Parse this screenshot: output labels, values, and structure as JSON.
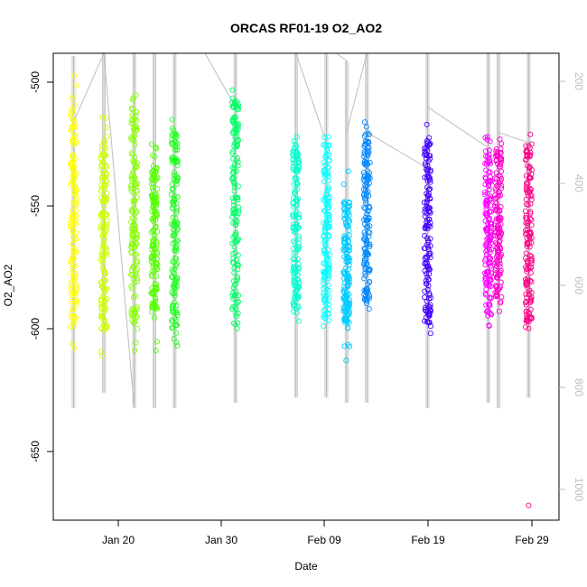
{
  "chart_data": {
    "type": "scatter",
    "title": "ORCAS RF01-19 O2_AO2",
    "xlabel": "Date",
    "ylabel": "O2_AO2",
    "x_ticks": [
      "Jan 20",
      "Jan 30",
      "Feb 09",
      "Feb 19",
      "Feb 29"
    ],
    "y_ticks": [
      "-500",
      "-550",
      "-600",
      "-650"
    ],
    "y_tick_values": [
      -500,
      -550,
      -600,
      -650
    ],
    "y2_ticks": [
      "200",
      "400",
      "600",
      "800",
      "1000"
    ],
    "y2_tick_values": [
      200,
      400,
      600,
      800,
      1000
    ],
    "xlim": [
      "2016-01-13",
      "2016-03-03"
    ],
    "ylim": [
      -678,
      -488
    ],
    "y2lim": [
      1050,
      135
    ],
    "y2_reversed": true,
    "grid": false,
    "legend": "none",
    "series": [
      {
        "date": "2016-01-15",
        "y_min": -608,
        "y_max": -497,
        "core": [
          -598,
          -505
        ],
        "color": "#ffff00"
      },
      {
        "date": "2016-01-18",
        "y_min": -611,
        "y_max": -514,
        "core": [
          -601,
          -521
        ],
        "color": "#ccff00"
      },
      {
        "date": "2016-01-21",
        "y_min": -609,
        "y_max": -505,
        "core": [
          -598,
          -510
        ],
        "color": "#88ff00"
      },
      {
        "date": "2016-01-23",
        "y_min": -609,
        "y_max": -525,
        "core": [
          -592,
          -533
        ],
        "color": "#55ff00"
      },
      {
        "date": "2016-01-25",
        "y_min": -607,
        "y_max": -515,
        "core": [
          -600,
          -520
        ],
        "color": "#22ff22"
      },
      {
        "date": "2016-01-31",
        "y_min": -600,
        "y_max": -503,
        "core": [
          -598,
          -506
        ],
        "color": "#00ff66"
      },
      {
        "date": "2016-02-06",
        "y_min": -597,
        "y_max": -522,
        "core": [
          -594,
          -526
        ],
        "color": "#00ffcc"
      },
      {
        "date": "2016-02-09",
        "y_min": -599,
        "y_max": -522,
        "core": [
          -596,
          -525
        ],
        "color": "#00ffff"
      },
      {
        "date": "2016-02-11",
        "y_min": -613,
        "y_max": -536,
        "core": [
          -598,
          -548
        ],
        "color": "#00ccff"
      },
      {
        "date": "2016-02-13",
        "y_min": -592,
        "y_max": -516,
        "core": [
          -590,
          -520
        ],
        "color": "#0088ff"
      },
      {
        "date": "2016-02-19",
        "y_min": -602,
        "y_max": -517,
        "core": [
          -598,
          -522
        ],
        "color": "#4400ff"
      },
      {
        "date": "2016-02-25",
        "y_min": -599,
        "y_max": -522,
        "core": [
          -596,
          -525
        ],
        "color": "#ff00ff"
      },
      {
        "date": "2016-02-26",
        "y_min": -593,
        "y_max": -523,
        "core": [
          -590,
          -527
        ],
        "color": "#ff00cc"
      },
      {
        "date": "2016-02-29",
        "y_min": -600,
        "y_max": -521,
        "core": [
          -598,
          -525
        ],
        "color": "#ff0088",
        "outlier": -672
      }
    ],
    "altitude_traces": [
      {
        "x": [
          "2016-01-15",
          "2016-01-15"
        ],
        "y2": [
          830,
          140
        ]
      },
      {
        "x": [
          "2016-01-18",
          "2016-01-18"
        ],
        "y2": [
          800,
          135
        ]
      },
      {
        "x": [
          "2016-01-21",
          "2016-01-21"
        ],
        "y2": [
          830,
          135
        ]
      },
      {
        "x": [
          "2016-01-23",
          "2016-01-23"
        ],
        "y2": [
          830,
          135
        ]
      },
      {
        "x": [
          "2016-01-25",
          "2016-01-25"
        ],
        "y2": [
          830,
          135
        ]
      },
      {
        "x": [
          "2016-01-31",
          "2016-01-31"
        ],
        "y2": [
          820,
          135
        ]
      },
      {
        "x": [
          "2016-02-06",
          "2016-02-06"
        ],
        "y2": [
          810,
          135
        ]
      },
      {
        "x": [
          "2016-02-09",
          "2016-02-09"
        ],
        "y2": [
          810,
          135
        ]
      },
      {
        "x": [
          "2016-02-11",
          "2016-02-11"
        ],
        "y2": [
          820,
          150
        ]
      },
      {
        "x": [
          "2016-02-13",
          "2016-02-13"
        ],
        "y2": [
          820,
          135
        ]
      },
      {
        "x": [
          "2016-02-19",
          "2016-02-19"
        ],
        "y2": [
          830,
          135
        ]
      },
      {
        "x": [
          "2016-02-25",
          "2016-02-25"
        ],
        "y2": [
          820,
          135
        ]
      },
      {
        "x": [
          "2016-02-26",
          "2016-02-26"
        ],
        "y2": [
          830,
          135
        ]
      },
      {
        "x": [
          "2016-02-29",
          "2016-02-29"
        ],
        "y2": [
          810,
          135
        ]
      }
    ],
    "connectors": [
      {
        "x": [
          "2016-01-15",
          "2016-01-18"
        ],
        "y2": [
          270,
          135
        ]
      },
      {
        "x": [
          "2016-01-18",
          "2016-01-21"
        ],
        "y2": [
          135,
          830
        ]
      },
      {
        "x": [
          "2016-01-21",
          "2016-01-21"
        ],
        "y2": [
          185,
          135
        ]
      },
      {
        "x": [
          "2016-01-28",
          "2016-01-31"
        ],
        "y2": [
          135,
          240
        ]
      },
      {
        "x": [
          "2016-02-06",
          "2016-02-09"
        ],
        "y2": [
          135,
          310
        ]
      },
      {
        "x": [
          "2016-02-10",
          "2016-02-11"
        ],
        "y2": [
          135,
          150
        ]
      },
      {
        "x": [
          "2016-02-11",
          "2016-02-13"
        ],
        "y2": [
          290,
          135
        ]
      },
      {
        "x": [
          "2016-02-13",
          "2016-02-19"
        ],
        "y2": [
          290,
          360
        ]
      },
      {
        "x": [
          "2016-02-19",
          "2016-02-25"
        ],
        "y2": [
          240,
          320
        ]
      },
      {
        "x": [
          "2016-02-26",
          "2016-02-29"
        ],
        "y2": [
          290,
          310
        ]
      }
    ]
  }
}
